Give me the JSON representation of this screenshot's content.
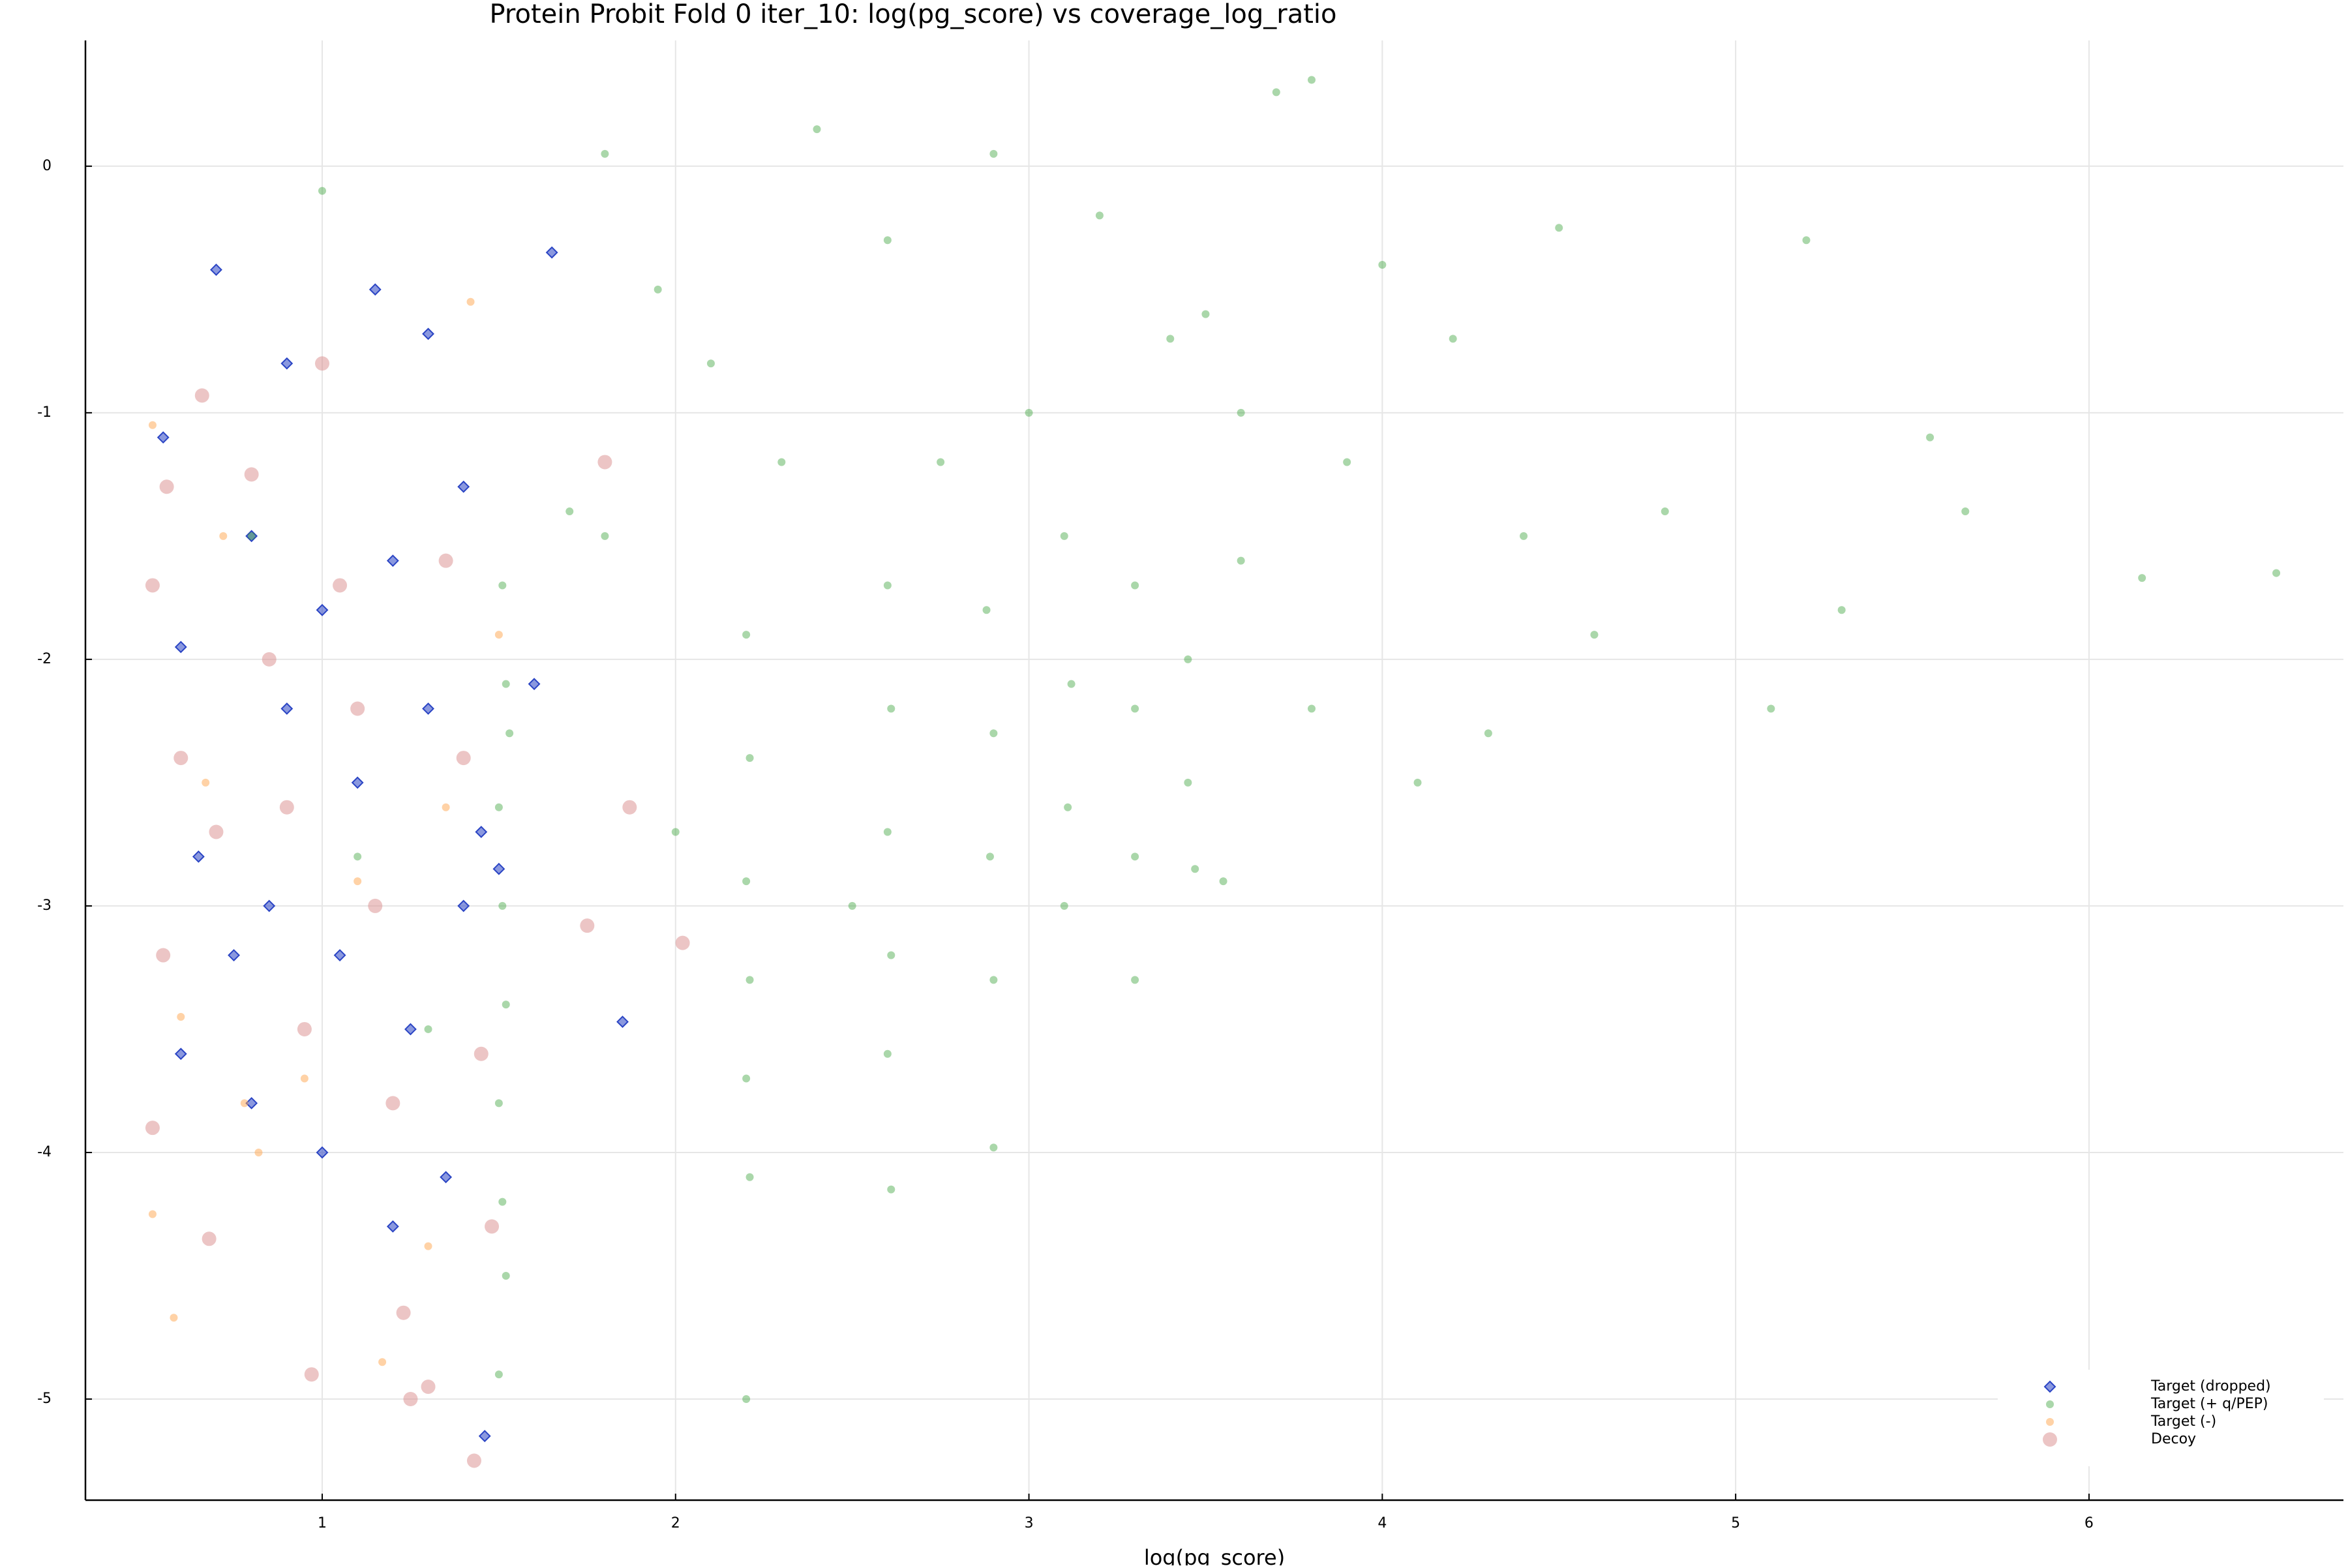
{
  "chart_data": {
    "type": "scatter",
    "title": "Protein Probit Fold 0 iter_10: log(pg_score) vs coverage_log_ratio",
    "x_label": "log(pg_score)",
    "xlim": [
      0.33,
      6.72
    ],
    "ylim": [
      -5.41,
      0.51
    ],
    "xticks": [
      1,
      2,
      3,
      4,
      5,
      6
    ],
    "yticks": [
      0,
      -1,
      -2,
      -3,
      -4,
      -5
    ],
    "grid": true,
    "legend": "bottom right",
    "series": [
      {
        "name": "Target (dropped)",
        "color": "#2a44c4",
        "marker": "diamond",
        "x": [
          0.7,
          0.9,
          1.15,
          1.3,
          1.65,
          0.55,
          0.8,
          1.0,
          1.2,
          1.4,
          0.6,
          0.9,
          1.1,
          1.3,
          1.45,
          0.65,
          0.85,
          1.05,
          1.25,
          1.4,
          0.6,
          0.8,
          1.0,
          1.2,
          1.46,
          1.85,
          1.6,
          1.5,
          1.35,
          0.75
        ],
        "values": [
          -0.42,
          -0.8,
          -0.5,
          -0.68,
          -0.35,
          -1.1,
          -1.5,
          -1.8,
          -1.6,
          -1.3,
          -1.95,
          -2.2,
          -2.5,
          -2.2,
          -2.7,
          -2.8,
          -3.0,
          -3.2,
          -3.5,
          -3.0,
          -3.6,
          -3.8,
          -4.0,
          -4.3,
          -5.15,
          -3.47,
          -2.1,
          -2.85,
          -4.1,
          -3.2
        ]
      },
      {
        "name": "Target (+ q/PEP)",
        "color": "#2a9a2a",
        "marker": "circle",
        "x": [
          1.51,
          1.52,
          1.5,
          1.51,
          1.52,
          1.5,
          1.51,
          1.52,
          1.5,
          1.53,
          2.2,
          2.21,
          2.2,
          2.21,
          2.2,
          2.21,
          2.2,
          2.6,
          2.61,
          2.6,
          2.61,
          2.6,
          2.61,
          2.88,
          2.9,
          2.89,
          2.9,
          3.1,
          3.12,
          3.11,
          3.1,
          3.3,
          3.3,
          3.3,
          3.3,
          3.45,
          3.45,
          3.47,
          1.8,
          1.95,
          2.1,
          2.4,
          2.6,
          2.9,
          3.2,
          3.5,
          3.7,
          3.8,
          4.0,
          4.2,
          3.6,
          3.9,
          4.4,
          4.6,
          4.8,
          5.1,
          5.2,
          5.3,
          5.55,
          5.65,
          6.15,
          6.53,
          1.8,
          2.0,
          2.3,
          2.5,
          2.75,
          3.0,
          3.4,
          3.6,
          3.8,
          4.1,
          4.3,
          3.55,
          1.0,
          0.8,
          1.1,
          1.3,
          4.5,
          2.9,
          1.7
        ],
        "values": [
          -1.7,
          -2.1,
          -2.6,
          -3.0,
          -3.4,
          -3.8,
          -4.2,
          -4.5,
          -4.9,
          -2.3,
          -1.9,
          -2.4,
          -2.9,
          -3.3,
          -3.7,
          -4.1,
          -5.0,
          -1.7,
          -2.2,
          -2.7,
          -3.2,
          -3.6,
          -4.15,
          -1.8,
          -2.3,
          -2.8,
          -3.3,
          -1.5,
          -2.1,
          -2.6,
          -3.0,
          -1.7,
          -2.2,
          -2.8,
          -3.3,
          -2.0,
          -2.5,
          -2.85,
          0.05,
          -0.5,
          -0.8,
          0.15,
          -0.3,
          0.05,
          -0.2,
          -0.6,
          0.3,
          0.35,
          -0.4,
          -0.7,
          -1.0,
          -1.2,
          -1.5,
          -1.9,
          -1.4,
          -2.2,
          -0.3,
          -1.8,
          -1.1,
          -1.4,
          -1.67,
          -1.65,
          -1.5,
          -2.7,
          -1.2,
          -3.0,
          -1.2,
          -1.0,
          -0.7,
          -1.6,
          -2.2,
          -2.5,
          -2.3,
          -2.9,
          -0.1,
          -1.5,
          -2.8,
          -3.5,
          -0.25,
          -3.98,
          -1.4
        ]
      },
      {
        "name": "Target (-)",
        "color": "#ffa64d",
        "marker": "circle",
        "x": [
          0.52,
          0.72,
          1.42,
          0.67,
          0.6,
          0.82,
          0.52,
          0.58,
          1.17,
          1.3,
          1.5,
          1.1,
          0.95,
          1.35,
          0.78
        ],
        "values": [
          -1.05,
          -1.5,
          -0.55,
          -2.5,
          -3.45,
          -4.0,
          -4.25,
          -4.67,
          -4.85,
          -4.38,
          -1.9,
          -2.9,
          -3.7,
          -2.6,
          -3.8
        ]
      },
      {
        "name": "Decoy",
        "color": "#d98c8c",
        "marker": "circle",
        "x": [
          0.52,
          0.56,
          0.6,
          0.55,
          0.52,
          0.68,
          0.66,
          0.8,
          0.85,
          0.9,
          0.95,
          0.97,
          1.0,
          1.05,
          1.1,
          1.15,
          1.2,
          1.23,
          1.25,
          1.3,
          1.43,
          1.35,
          1.4,
          1.45,
          1.48,
          1.75,
          1.87,
          2.02,
          1.8,
          0.7
        ],
        "values": [
          -1.7,
          -1.3,
          -2.4,
          -3.2,
          -3.9,
          -4.35,
          -0.93,
          -1.25,
          -2.0,
          -2.6,
          -3.5,
          -4.9,
          -0.8,
          -1.7,
          -2.2,
          -3.0,
          -3.8,
          -4.65,
          -5.0,
          -4.95,
          -5.25,
          -1.6,
          -2.4,
          -3.6,
          -4.3,
          -3.08,
          -2.6,
          -3.15,
          -1.2,
          -2.7
        ]
      }
    ]
  }
}
